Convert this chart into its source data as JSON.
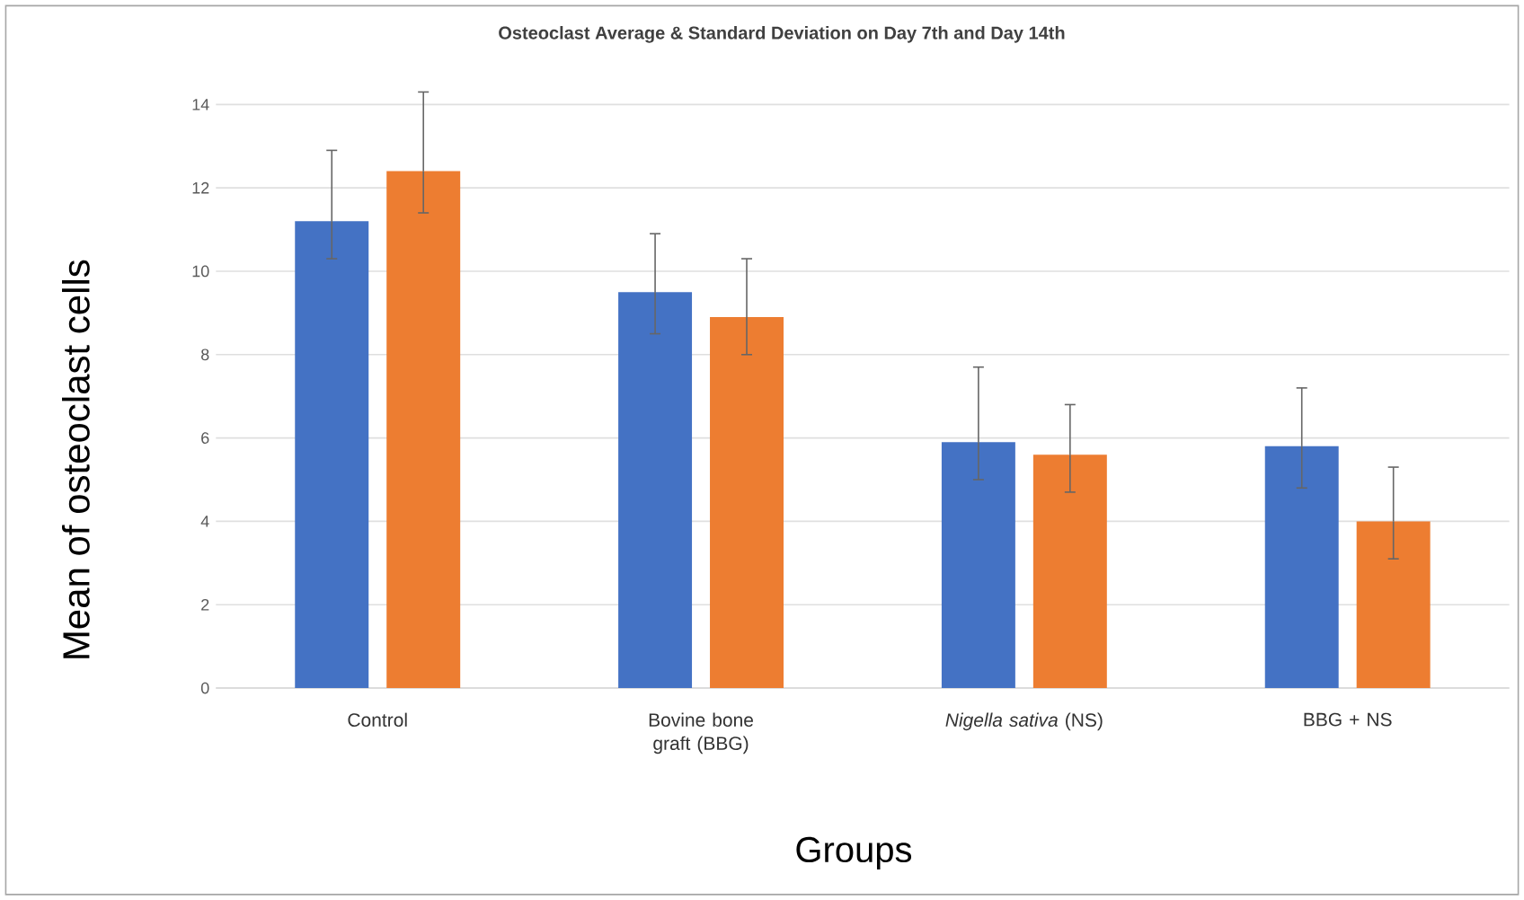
{
  "chart_data": {
    "type": "bar",
    "title": "Osteoclast Average & Standard Deviation on Day 7th and Day 14th",
    "xlabel": "Groups",
    "ylabel": "Mean of osteoclast cells",
    "categories": [
      "Control",
      "Bovine bone graft (BBG)",
      "*Nigella sativa* (NS)",
      "BBG + NS"
    ],
    "series": [
      {
        "color": "#4472c4",
        "values": [
          11.2,
          9.5,
          5.9,
          5.8
        ],
        "errors": [
          [
            10.3,
            12.9
          ],
          [
            8.5,
            10.9
          ],
          [
            5.0,
            7.7
          ],
          [
            4.8,
            7.2
          ]
        ]
      },
      {
        "color": "#ed7d31",
        "values": [
          12.4,
          8.9,
          5.6,
          4.0
        ],
        "errors": [
          [
            11.4,
            14.3
          ],
          [
            8.0,
            10.3
          ],
          [
            4.7,
            6.8
          ],
          [
            3.1,
            5.3
          ]
        ]
      }
    ],
    "ylim": [
      0,
      14
    ],
    "yticks": [
      0,
      2,
      4,
      6,
      8,
      10,
      12,
      14
    ],
    "grid": "y"
  }
}
